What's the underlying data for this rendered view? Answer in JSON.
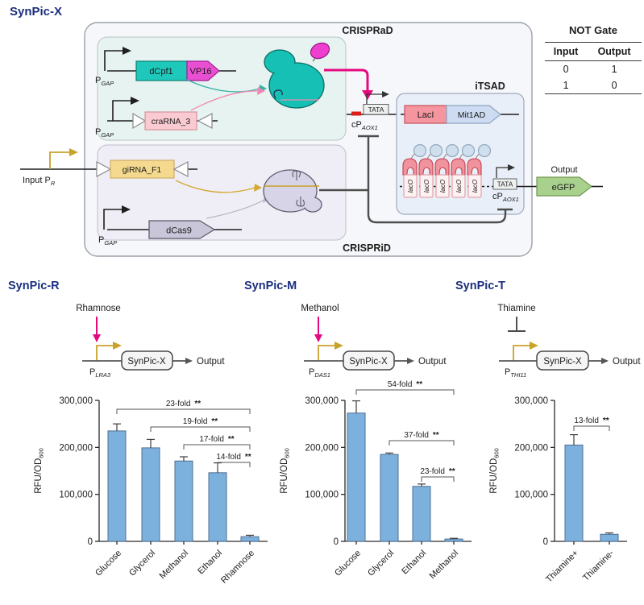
{
  "figure_title": "SynPic-X",
  "diagram": {
    "crisprad_label": "CRISPRaD",
    "crisprid_label": "CRISPRiD",
    "itsad_label": "iTSAD",
    "dcpf1": "dCpf1",
    "vp16": "VP16",
    "crarna": "craRNA_3",
    "girna": "giRNA_F1",
    "dcas9": "dCas9",
    "pgap": {
      "p": "P",
      "sub": "GAP"
    },
    "input_promoter": {
      "p": "Input P",
      "sub": "R"
    },
    "tata": "TATA",
    "cpaox": {
      "p": "cP",
      "sub": "AOX1"
    },
    "laci": "LacI",
    "mit1ad": "Mit1AD",
    "laco": "lacO",
    "output": "Output",
    "egfp": "eGFP"
  },
  "not_gate": {
    "title": "NOT Gate",
    "columns": [
      "Input",
      "Output"
    ],
    "rows": [
      [
        "0",
        "1"
      ],
      [
        "1",
        "0"
      ]
    ]
  },
  "panels": [
    {
      "title": "SynPic-R",
      "inducer": "Rhamnose",
      "regulation": "activation",
      "promoter": {
        "p": "P",
        "sub": "LRA3"
      },
      "module": "SynPic-X",
      "output": "Output"
    },
    {
      "title": "SynPic-M",
      "inducer": "Methanol",
      "regulation": "activation",
      "promoter": {
        "p": "P",
        "sub": "DAS1"
      },
      "module": "SynPic-X",
      "output": "Output"
    },
    {
      "title": "SynPic-T",
      "inducer": "Thiamine",
      "regulation": "repression",
      "promoter": {
        "p": "P",
        "sub": "THI11"
      },
      "module": "SynPic-X",
      "output": "Output"
    }
  ],
  "chart_data": [
    {
      "type": "bar",
      "title": "SynPic-R",
      "categories": [
        "Glucose",
        "Glycerol",
        "Methanol",
        "Ethanol",
        "Rhamnose"
      ],
      "values": [
        235000,
        199000,
        171000,
        146000,
        10000
      ],
      "errors": [
        15000,
        18000,
        9000,
        21000,
        3000
      ],
      "ylabel": "RFU/OD",
      "ylabel_sub": "600",
      "xlabel": "",
      "ylim": [
        0,
        300000
      ],
      "ytick_values": [
        0,
        100000,
        200000,
        300000
      ],
      "ytick_labels": [
        "0",
        "100,000",
        "200,000",
        "300,000"
      ],
      "grid": false,
      "comparisons": [
        {
          "from": 0,
          "to": 4,
          "label": "23-fold",
          "sig": "**"
        },
        {
          "from": 1,
          "to": 4,
          "label": "19-fold",
          "sig": "**"
        },
        {
          "from": 2,
          "to": 4,
          "label": "17-fold",
          "sig": "**"
        },
        {
          "from": 3,
          "to": 4,
          "label": "14-fold",
          "sig": "**"
        }
      ]
    },
    {
      "type": "bar",
      "title": "SynPic-M",
      "categories": [
        "Glucose",
        "Glycerol",
        "Ethanol",
        "Methanol"
      ],
      "values": [
        273000,
        185000,
        117000,
        5000
      ],
      "errors": [
        26000,
        3000,
        5000,
        1500
      ],
      "ylabel": "RFU/OD",
      "ylabel_sub": "600",
      "xlabel": "",
      "ylim": [
        0,
        300000
      ],
      "ytick_values": [
        0,
        100000,
        200000,
        300000
      ],
      "ytick_labels": [
        "0",
        "100,000",
        "200,000",
        "300,000"
      ],
      "grid": false,
      "comparisons": [
        {
          "from": 0,
          "to": 3,
          "label": "54-fold",
          "sig": "**"
        },
        {
          "from": 1,
          "to": 3,
          "label": "37-fold",
          "sig": "**"
        },
        {
          "from": 2,
          "to": 3,
          "label": "23-fold",
          "sig": "**"
        }
      ]
    },
    {
      "type": "bar",
      "title": "SynPic-T",
      "categories": [
        "Thiamine+",
        "Thiamine-"
      ],
      "values": [
        205000,
        15000
      ],
      "errors": [
        22000,
        3000
      ],
      "ylabel": "RFU/OD",
      "ylabel_sub": "600",
      "xlabel": "",
      "ylim": [
        0,
        300000
      ],
      "ytick_values": [
        0,
        100000,
        200000,
        300000
      ],
      "ytick_labels": [
        "0",
        "100,000",
        "200,000",
        "300,000"
      ],
      "grid": false,
      "comparisons": [
        {
          "from": 0,
          "to": 1,
          "label": "13-fold",
          "sig": "**"
        }
      ]
    }
  ],
  "colors": {
    "accent_navy": "#1b2f7e",
    "bar_fill": "#7db1dd",
    "bar_stroke": "#4e6f94",
    "activation_pink": "#e5097f",
    "promoter_gold": "#c9a22a",
    "dcpf1_teal": "#1ec8bb",
    "vp16_magenta": "#e94fd2",
    "egfp_green": "#a9d18e"
  }
}
